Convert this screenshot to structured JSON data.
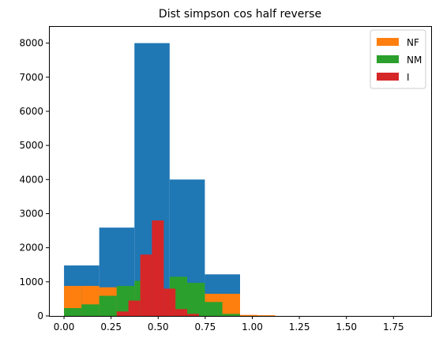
{
  "chart_data": {
    "type": "bar",
    "subtype": "histogram",
    "title": "Dist simpson cos half reverse",
    "xlabel": "",
    "ylabel": "",
    "xlim": [
      -0.08,
      1.95
    ],
    "ylim": [
      0,
      8500
    ],
    "xticks": [
      0.0,
      0.25,
      0.5,
      0.75,
      1.0,
      1.25,
      1.5,
      1.75
    ],
    "xtick_labels": [
      "0.00",
      "0.25",
      "0.50",
      "0.75",
      "1.00",
      "1.25",
      "1.50",
      "1.75"
    ],
    "yticks": [
      0,
      1000,
      2000,
      3000,
      4000,
      5000,
      6000,
      7000,
      8000
    ],
    "ytick_labels": [
      "0",
      "1000",
      "2000",
      "3000",
      "4000",
      "5000",
      "6000",
      "7000",
      "8000"
    ],
    "grid": false,
    "legend_position": "top-right",
    "series": [
      {
        "color": "#1f77b4",
        "in_legend": false,
        "bins": [
          {
            "x0": 0.0,
            "x1": 0.187,
            "value": 1480
          },
          {
            "x0": 0.187,
            "x1": 0.374,
            "value": 2590
          },
          {
            "x0": 0.374,
            "x1": 0.561,
            "value": 8000
          },
          {
            "x0": 0.561,
            "x1": 0.748,
            "value": 4000
          },
          {
            "x0": 0.748,
            "x1": 0.935,
            "value": 1220
          }
        ]
      },
      {
        "name": "NF",
        "color": "#ff7f0e",
        "in_legend": true,
        "bins": [
          {
            "x0": 0.0,
            "x1": 0.093,
            "value": 880
          },
          {
            "x0": 0.093,
            "x1": 0.187,
            "value": 880
          },
          {
            "x0": 0.187,
            "x1": 0.28,
            "value": 840
          },
          {
            "x0": 0.28,
            "x1": 0.374,
            "value": 840
          },
          {
            "x0": 0.748,
            "x1": 0.935,
            "value": 650
          },
          {
            "x0": 0.935,
            "x1": 1.028,
            "value": 30
          },
          {
            "x0": 1.028,
            "x1": 1.122,
            "value": 20
          }
        ]
      },
      {
        "name": "NM",
        "color": "#2ca02c",
        "in_legend": true,
        "bins": [
          {
            "x0": 0.0,
            "x1": 0.093,
            "value": 230
          },
          {
            "x0": 0.093,
            "x1": 0.187,
            "value": 340
          },
          {
            "x0": 0.187,
            "x1": 0.28,
            "value": 590
          },
          {
            "x0": 0.28,
            "x1": 0.374,
            "value": 880
          },
          {
            "x0": 0.374,
            "x1": 0.42,
            "value": 1030
          },
          {
            "x0": 0.561,
            "x1": 0.654,
            "value": 1150
          },
          {
            "x0": 0.654,
            "x1": 0.748,
            "value": 970
          },
          {
            "x0": 0.748,
            "x1": 0.841,
            "value": 410
          },
          {
            "x0": 0.841,
            "x1": 0.935,
            "value": 60
          }
        ]
      },
      {
        "name": "I",
        "color": "#d62728",
        "in_legend": true,
        "bins": [
          {
            "x0": 0.28,
            "x1": 0.342,
            "value": 130
          },
          {
            "x0": 0.342,
            "x1": 0.405,
            "value": 450
          },
          {
            "x0": 0.405,
            "x1": 0.467,
            "value": 1800
          },
          {
            "x0": 0.467,
            "x1": 0.53,
            "value": 2800
          },
          {
            "x0": 0.53,
            "x1": 0.592,
            "value": 800
          },
          {
            "x0": 0.592,
            "x1": 0.654,
            "value": 200
          },
          {
            "x0": 0.654,
            "x1": 0.717,
            "value": 60
          }
        ]
      }
    ]
  }
}
